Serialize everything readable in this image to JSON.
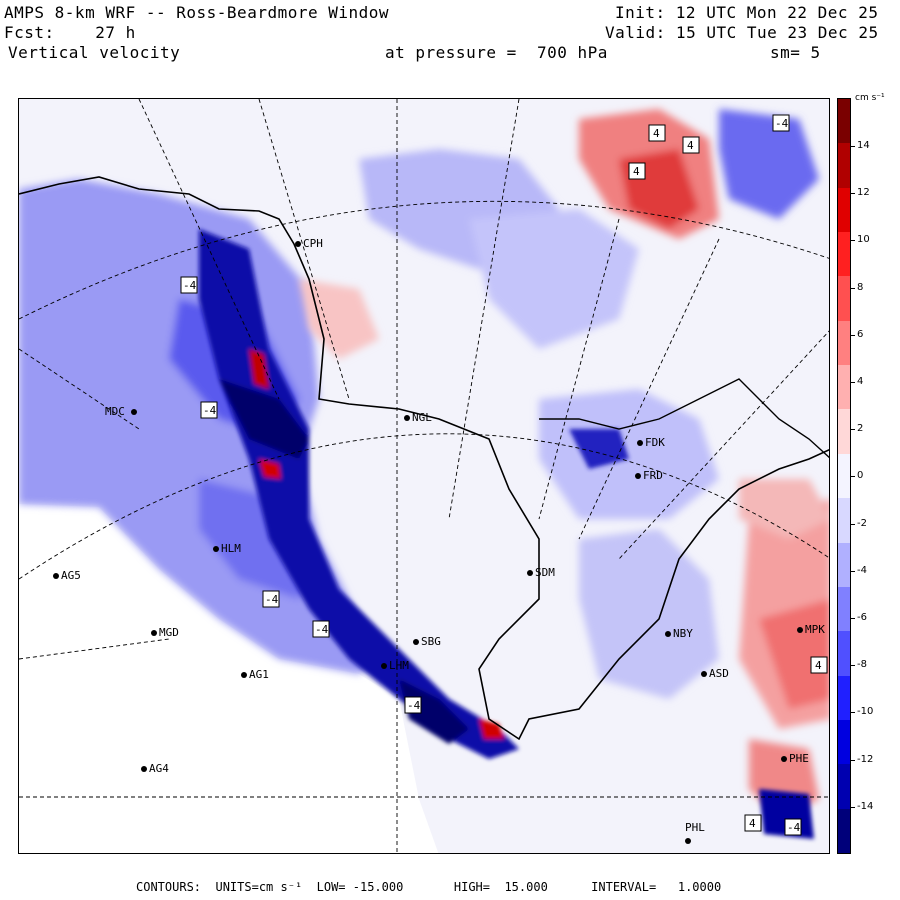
{
  "header": {
    "model_title": "AMPS 8-km WRF -- Ross-Beardmore Window",
    "forecast": "Fcst:    27 h",
    "field": "Vertical velocity",
    "init": "Init: 12 UTC Mon 22 Dec 25",
    "valid": "Valid: 15 UTC Tue 23 Dec 25",
    "pressure": "at pressure =  700 hPa",
    "smoothing": "sm= 5"
  },
  "colorbar": {
    "units": "cm s⁻¹",
    "ticks": [
      "14",
      "12",
      "10",
      "8",
      "6",
      "4",
      "2",
      "0",
      "-2",
      "-4",
      "-6",
      "-8",
      "-10",
      "-12",
      "-14"
    ],
    "colors": [
      "#7a0000",
      "#b00000",
      "#e00000",
      "#ff2020",
      "#ff5050",
      "#ff8080",
      "#ffb0b0",
      "#ffd8d8",
      "#f4f4ff",
      "#d8d8ff",
      "#b0b0ff",
      "#8080ff",
      "#5050ff",
      "#2020ff",
      "#0000e0",
      "#0000b0",
      "#00007a"
    ]
  },
  "stations": [
    {
      "code": "CPH"
    },
    {
      "code": "MDC"
    },
    {
      "code": "NGL"
    },
    {
      "code": "FDK"
    },
    {
      "code": "FRD"
    },
    {
      "code": "SDM"
    },
    {
      "code": "AG5"
    },
    {
      "code": "MGD"
    },
    {
      "code": "AG1"
    },
    {
      "code": "AG4"
    },
    {
      "code": "NBY"
    },
    {
      "code": "ASD"
    },
    {
      "code": "PHL"
    },
    {
      "code": "PHE"
    },
    {
      "code": "MPK"
    },
    {
      "code": "SBG"
    },
    {
      "code": "LHM"
    },
    {
      "code": "HLM"
    }
  ],
  "contour_labels": [
    "-4",
    "-4",
    "-4",
    "-4",
    "-4",
    "4",
    "4",
    "4",
    "-4",
    "4",
    "4",
    "-4"
  ],
  "footer": "CONTOURS:  UNITS=cm s⁻¹  LOW= -15.000       HIGH=  15.000      INTERVAL=   1.0000"
}
